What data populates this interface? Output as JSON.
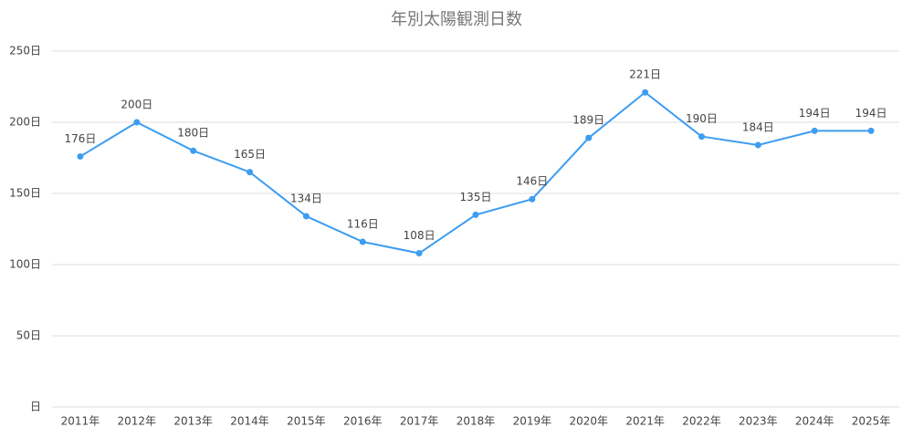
{
  "chart_data": {
    "type": "line",
    "title": "年別太陽観測日数",
    "categories": [
      "2011年",
      "2012年",
      "2013年",
      "2014年",
      "2015年",
      "2016年",
      "2017年",
      "2018年",
      "2019年",
      "2020年",
      "2021年",
      "2022年",
      "2023年",
      "2024年",
      "2025年"
    ],
    "series": [
      {
        "color": "#3d9df0",
        "values": [
          176,
          200,
          180,
          165,
          134,
          116,
          108,
          135,
          146,
          189,
          221,
          190,
          184,
          194,
          194
        ],
        "value_labels": [
          "176日",
          "200日",
          "180日",
          "165日",
          "134日",
          "116日",
          "108日",
          "135日",
          "146日",
          "189日",
          "221日",
          "190日",
          "184日",
          "194日",
          "194日"
        ]
      }
    ],
    "ylim": [
      0,
      250
    ],
    "yticks": [
      {
        "value": 0,
        "label": "日"
      },
      {
        "value": 50,
        "label": "50日"
      },
      {
        "value": 100,
        "label": "100日"
      },
      {
        "value": 150,
        "label": "150日"
      },
      {
        "value": 200,
        "label": "200日"
      },
      {
        "value": 250,
        "label": "250日"
      }
    ],
    "grid": true
  }
}
